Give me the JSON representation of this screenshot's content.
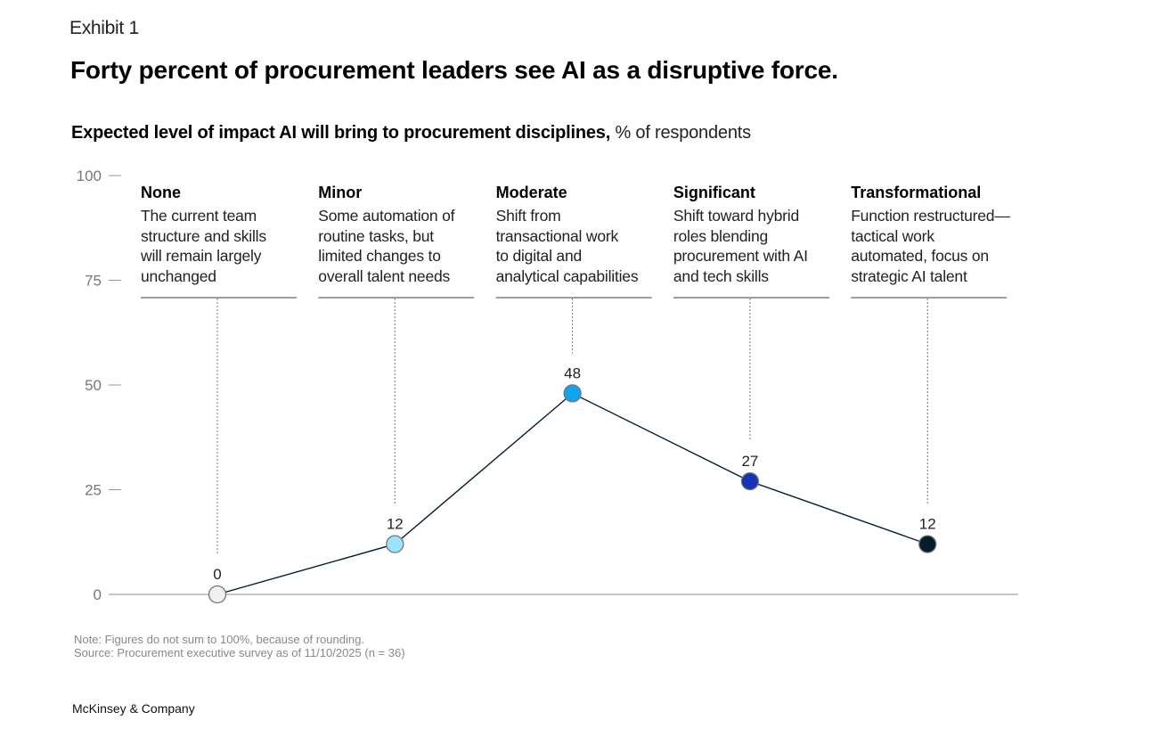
{
  "exhibit_label": "Exhibit 1",
  "title": "Forty percent of procurement leaders see AI as a disruptive force.",
  "subtitle": {
    "bold": "Expected level of impact AI will bring to procurement disciplines,",
    "light": " % of respondents"
  },
  "footer": {
    "note": "Note: Figures do not sum to 100%, because of rounding.",
    "source": "Source: Procurement executive survey as of 11/10/2025 (n = 36)",
    "brand": "McKinsey & Company"
  },
  "chart_data": {
    "type": "line",
    "title": "Expected level of impact AI will bring to procurement disciplines",
    "ylabel": "% of respondents",
    "xlabel": "",
    "ylim": [
      0,
      100
    ],
    "yticks": [
      0,
      25,
      50,
      75,
      100
    ],
    "grid": false,
    "categories": [
      "None",
      "Minor",
      "Moderate",
      "Significant",
      "Transformational"
    ],
    "descriptions": [
      [
        "The current team",
        "structure and skills",
        "will remain largely",
        "unchanged"
      ],
      [
        "Some automation of",
        "routine tasks, but",
        "limited changes to",
        "overall talent needs"
      ],
      [
        "Shift from",
        "transactional work",
        "to digital and",
        "analytical capabilities"
      ],
      [
        "Shift toward hybrid",
        "roles blending",
        "procurement with AI",
        "and tech skills"
      ],
      [
        "Function restructured—",
        "tactical work",
        "automated, focus on",
        "strategic AI talent"
      ]
    ],
    "values": [
      0,
      12,
      48,
      27,
      12
    ],
    "value_labels": [
      "0",
      "12",
      "48",
      "27",
      "12"
    ],
    "marker_colors": [
      "#f0f0f0",
      "#99e4fb",
      "#0ea5ee",
      "#1534b8",
      "#051c2c"
    ],
    "line_color": "#051c2c"
  }
}
